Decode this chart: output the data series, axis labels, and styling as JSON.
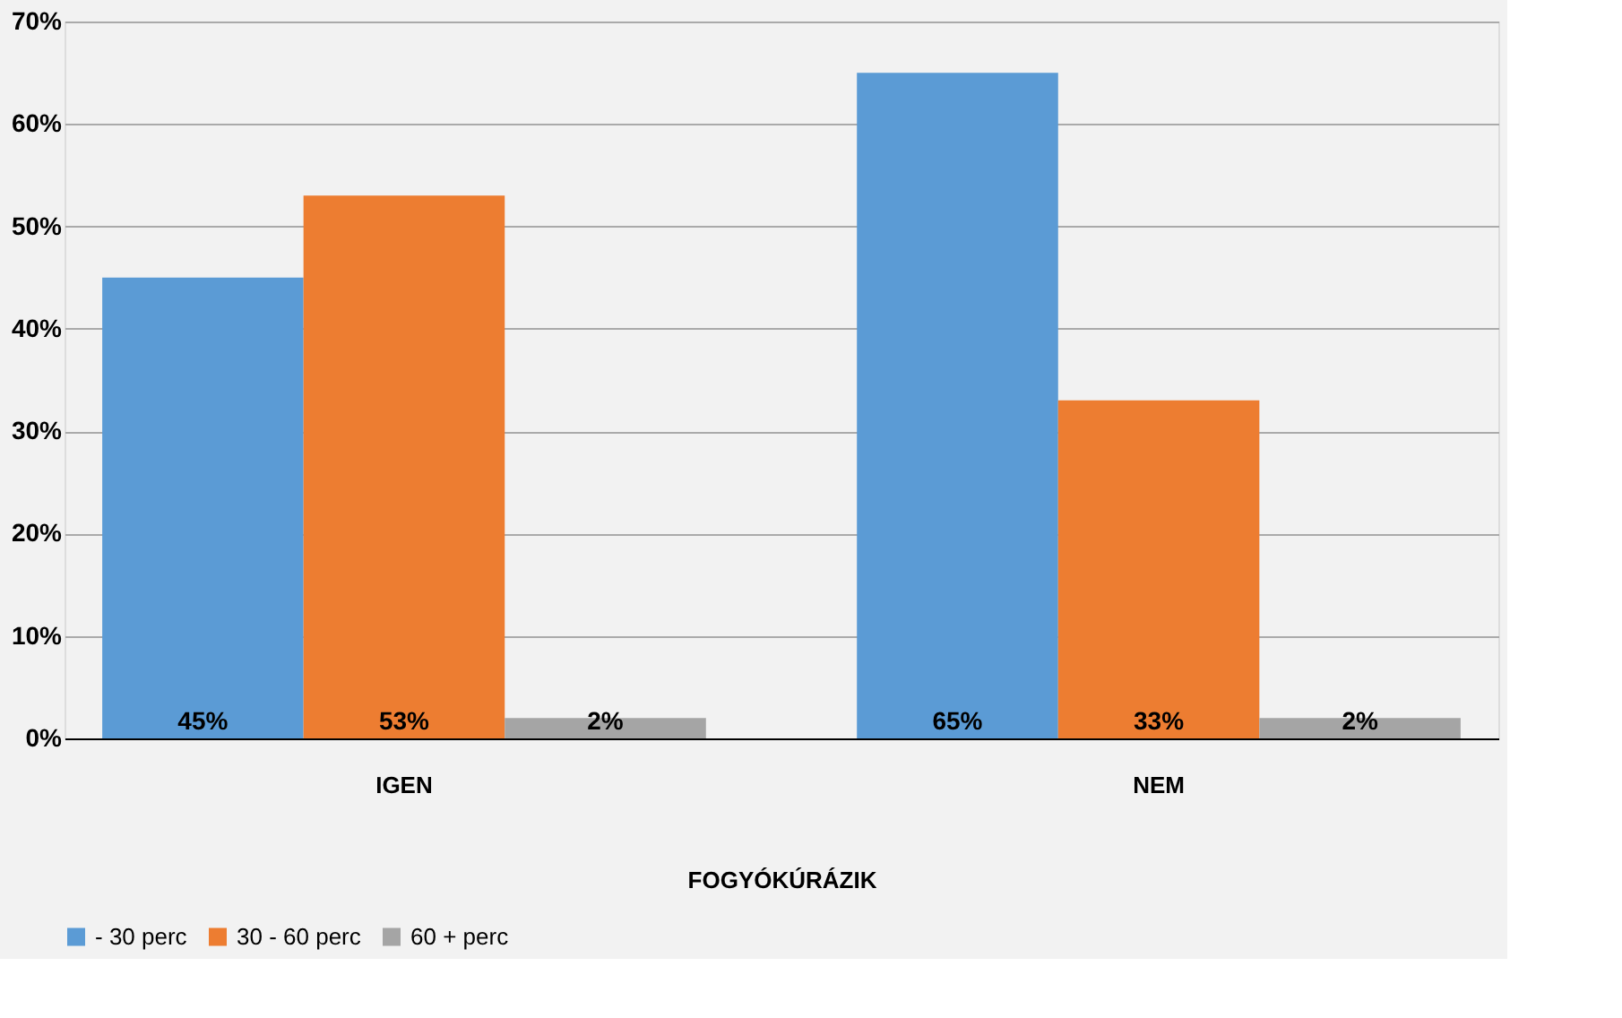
{
  "chart_data": {
    "type": "bar",
    "categories": [
      "IGEN",
      "NEM"
    ],
    "xlabel": "FOGYÓKÚRÁZIK",
    "series": [
      {
        "name": "- 30 perc",
        "color": "#5b9bd5",
        "values": [
          45,
          65
        ],
        "value_labels": [
          "45%",
          "65%"
        ]
      },
      {
        "name": "30 - 60 perc",
        "color": "#ed7d31",
        "values": [
          53,
          33
        ],
        "value_labels": [
          "53%",
          "33%"
        ]
      },
      {
        "name": "60 + perc",
        "color": "#a5a5a5",
        "values": [
          2,
          2
        ],
        "value_labels": [
          "2%",
          "2%"
        ]
      }
    ],
    "ylim": [
      0,
      70
    ],
    "yticks": [
      {
        "value": 0,
        "label": "0%"
      },
      {
        "value": 10,
        "label": "10%"
      },
      {
        "value": 20,
        "label": "20%"
      },
      {
        "value": 30,
        "label": "30%"
      },
      {
        "value": 40,
        "label": "40%"
      },
      {
        "value": 50,
        "label": "50%"
      },
      {
        "value": 60,
        "label": "60%"
      },
      {
        "value": 70,
        "label": "70%"
      }
    ],
    "grid": "y",
    "legend": "bottom"
  }
}
